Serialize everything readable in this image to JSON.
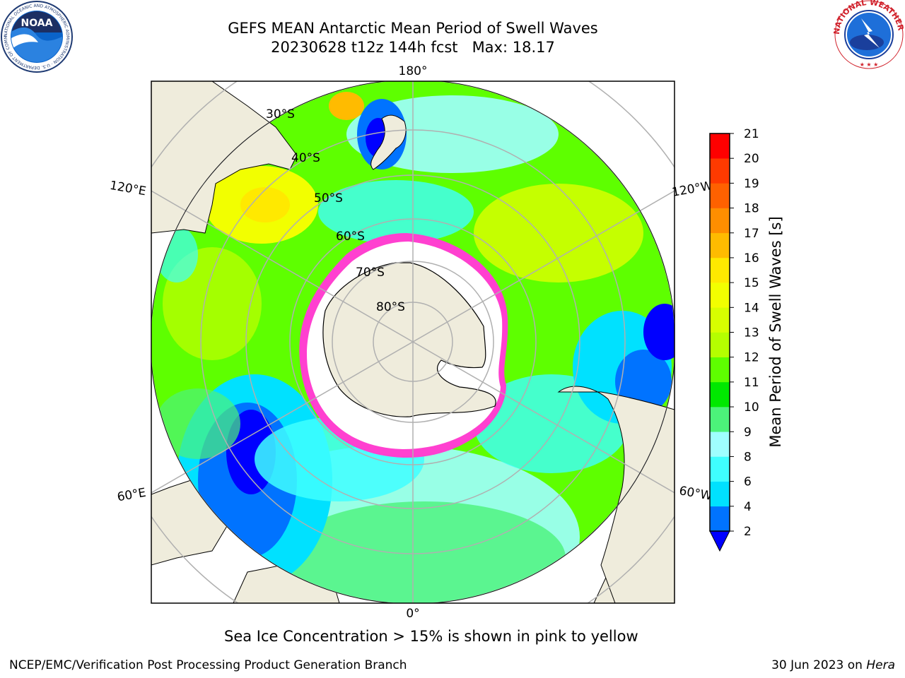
{
  "header": {
    "title_line1": "GEFS MEAN Antarctic Mean Period of Swell Waves",
    "title_line2": "20230628 t12z 144h fcst   Max: 18.17"
  },
  "logos": {
    "left": {
      "name": "noaa-logo",
      "text": "NOAA",
      "ring_text": "NATIONAL OCEANIC AND ATMOSPHERIC ADMINISTRATION · U.S. DEPARTMENT OF COMMERCE"
    },
    "right": {
      "name": "nws-logo",
      "ring_text": "NATIONAL WEATHER SERVICE"
    }
  },
  "map": {
    "projection": "south-polar-stereographic",
    "longitude_labels": {
      "top": "180°",
      "bottom": "0°",
      "upper_left": "120°E",
      "upper_right": "120°W",
      "lower_left": "60°E",
      "lower_right": "60°W"
    },
    "latitude_labels": [
      "30°S",
      "40°S",
      "50°S",
      "60°S",
      "70°S",
      "80°S"
    ],
    "colors": {
      "land": "#efecdc",
      "ocean_outside": "#ffffff",
      "gridline": "#b0b0b0"
    }
  },
  "colorbar": {
    "title": "Mean Period of Swell Waves [s]",
    "tick_labels": [
      "2",
      "4",
      "6",
      "8",
      "9",
      "10",
      "11",
      "12",
      "13",
      "14",
      "15",
      "16",
      "17",
      "18",
      "19",
      "20",
      "21"
    ],
    "colors": [
      "#0073ff",
      "#00e1ff",
      "#3fffff",
      "#9fffff",
      "#4cf27a",
      "#00e800",
      "#5eff00",
      "#b5ff00",
      "#d7ff00",
      "#f2ff00",
      "#ffe900",
      "#ffbb00",
      "#ff8e00",
      "#ff6100",
      "#ff3a00",
      "#ff0000"
    ],
    "extend_low_color": "#0000ff"
  },
  "caption": "Sea Ice Concentration > 15% is shown in pink to yellow",
  "footer": {
    "left": "NCEP/EMC/Verification Post Processing Product Generation Branch",
    "right_prefix": "30 Jun 2023 on ",
    "right_machine": "Hera"
  }
}
